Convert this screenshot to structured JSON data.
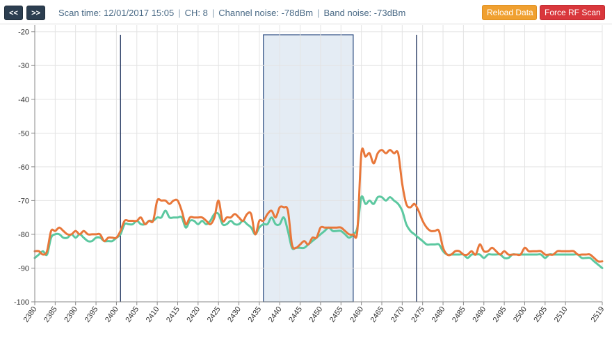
{
  "toolbar": {
    "prev_label": "<<",
    "next_label": ">>",
    "scan_time": "Scan time: 12/01/2017 15:05",
    "channel": "CH: 8",
    "channel_noise": "Channel noise: -78dBm",
    "band_noise": "Band noise: -73dBm",
    "separator": "|",
    "reload_label": "Reload Data",
    "force_label": "Force RF Scan",
    "colors": {
      "nav": "#2c3e50",
      "reload": "#f0a030",
      "force": "#d9373c"
    }
  },
  "chart_data": {
    "type": "line",
    "xlim": [
      2380,
      2519
    ],
    "ylim": [
      -100,
      -18
    ],
    "x_ticks": [
      2380,
      2385,
      2390,
      2395,
      2400,
      2405,
      2410,
      2415,
      2420,
      2425,
      2430,
      2435,
      2440,
      2445,
      2450,
      2455,
      2460,
      2465,
      2470,
      2475,
      2480,
      2485,
      2490,
      2495,
      2500,
      2505,
      2510,
      2519
    ],
    "y_ticks": [
      -20,
      -30,
      -40,
      -50,
      -60,
      -70,
      -80,
      -90,
      -100
    ],
    "grid": true,
    "channel_band": {
      "x0": 2436,
      "x1": 2458,
      "fill": "#e4ecf4",
      "stroke": "#2a4a7f"
    },
    "markers": [
      {
        "x": 2401,
        "color": "#2c3e66"
      },
      {
        "x": 2473.5,
        "color": "#2c3e66"
      }
    ],
    "series": [
      {
        "color": "#e8773a",
        "points": [
          [
            2380,
            -85
          ],
          [
            2381,
            -85
          ],
          [
            2382,
            -86
          ],
          [
            2383,
            -85
          ],
          [
            2384,
            -79
          ],
          [
            2385,
            -79
          ],
          [
            2386,
            -78
          ],
          [
            2387,
            -79
          ],
          [
            2388,
            -80
          ],
          [
            2389,
            -80
          ],
          [
            2390,
            -79
          ],
          [
            2391,
            -80
          ],
          [
            2392,
            -79
          ],
          [
            2393,
            -80
          ],
          [
            2394,
            -80
          ],
          [
            2395,
            -80
          ],
          [
            2396,
            -80
          ],
          [
            2397,
            -82
          ],
          [
            2398,
            -81
          ],
          [
            2399,
            -81
          ],
          [
            2400,
            -81
          ],
          [
            2401,
            -79
          ],
          [
            2402,
            -76
          ],
          [
            2403,
            -76
          ],
          [
            2404,
            -76
          ],
          [
            2405,
            -76
          ],
          [
            2406,
            -75
          ],
          [
            2407,
            -77
          ],
          [
            2408,
            -76
          ],
          [
            2409,
            -76
          ],
          [
            2410,
            -70
          ],
          [
            2411,
            -70
          ],
          [
            2412,
            -70
          ],
          [
            2413,
            -71
          ],
          [
            2414,
            -70
          ],
          [
            2415,
            -70
          ],
          [
            2416,
            -73
          ],
          [
            2417,
            -77
          ],
          [
            2418,
            -75
          ],
          [
            2419,
            -75
          ],
          [
            2420,
            -75
          ],
          [
            2421,
            -75
          ],
          [
            2422,
            -76
          ],
          [
            2423,
            -77
          ],
          [
            2424,
            -75
          ],
          [
            2425,
            -70
          ],
          [
            2426,
            -76
          ],
          [
            2427,
            -75
          ],
          [
            2428,
            -75
          ],
          [
            2429,
            -74
          ],
          [
            2430,
            -75
          ],
          [
            2431,
            -76
          ],
          [
            2432,
            -74
          ],
          [
            2433,
            -74
          ],
          [
            2434,
            -80
          ],
          [
            2435,
            -76
          ],
          [
            2436,
            -76
          ],
          [
            2437,
            -74
          ],
          [
            2438,
            -73
          ],
          [
            2439,
            -75
          ],
          [
            2440,
            -72
          ],
          [
            2441,
            -72
          ],
          [
            2442,
            -73
          ],
          [
            2443,
            -83
          ],
          [
            2444,
            -84
          ],
          [
            2445,
            -83
          ],
          [
            2446,
            -82
          ],
          [
            2447,
            -83
          ],
          [
            2448,
            -81
          ],
          [
            2449,
            -81
          ],
          [
            2450,
            -78
          ],
          [
            2451,
            -78
          ],
          [
            2452,
            -78
          ],
          [
            2453,
            -78
          ],
          [
            2454,
            -78
          ],
          [
            2455,
            -78
          ],
          [
            2456,
            -79
          ],
          [
            2457,
            -80
          ],
          [
            2458,
            -80
          ],
          [
            2459,
            -79
          ],
          [
            2460,
            -56
          ],
          [
            2461,
            -57
          ],
          [
            2462,
            -56
          ],
          [
            2463,
            -59
          ],
          [
            2464,
            -56
          ],
          [
            2465,
            -55
          ],
          [
            2466,
            -56
          ],
          [
            2467,
            -55
          ],
          [
            2468,
            -56
          ],
          [
            2469,
            -56
          ],
          [
            2470,
            -65
          ],
          [
            2471,
            -71
          ],
          [
            2472,
            -72
          ],
          [
            2473,
            -71
          ],
          [
            2474,
            -73
          ],
          [
            2475,
            -76
          ],
          [
            2476,
            -78
          ],
          [
            2477,
            -79
          ],
          [
            2478,
            -79
          ],
          [
            2479,
            -79
          ],
          [
            2480,
            -84
          ],
          [
            2481,
            -86
          ],
          [
            2482,
            -86
          ],
          [
            2483,
            -85
          ],
          [
            2484,
            -85
          ],
          [
            2485,
            -86
          ],
          [
            2486,
            -86
          ],
          [
            2487,
            -85
          ],
          [
            2488,
            -86
          ],
          [
            2489,
            -83
          ],
          [
            2490,
            -85
          ],
          [
            2491,
            -85
          ],
          [
            2492,
            -84
          ],
          [
            2493,
            -85
          ],
          [
            2494,
            -86
          ],
          [
            2495,
            -85
          ],
          [
            2496,
            -86
          ],
          [
            2497,
            -86
          ],
          [
            2498,
            -86
          ],
          [
            2499,
            -86
          ],
          [
            2500,
            -84
          ],
          [
            2501,
            -85
          ],
          [
            2502,
            -85
          ],
          [
            2503,
            -85
          ],
          [
            2504,
            -85
          ],
          [
            2505,
            -86
          ],
          [
            2506,
            -86
          ],
          [
            2507,
            -86
          ],
          [
            2508,
            -85
          ],
          [
            2509,
            -85
          ],
          [
            2510,
            -85
          ],
          [
            2511,
            -85
          ],
          [
            2512,
            -85
          ],
          [
            2513,
            -86
          ],
          [
            2514,
            -86
          ],
          [
            2515,
            -86
          ],
          [
            2516,
            -86
          ],
          [
            2517,
            -87
          ],
          [
            2518,
            -88
          ],
          [
            2519,
            -88
          ]
        ]
      },
      {
        "color": "#5cc8a0",
        "points": [
          [
            2380,
            -87
          ],
          [
            2381,
            -86
          ],
          [
            2382,
            -85
          ],
          [
            2383,
            -86
          ],
          [
            2384,
            -81
          ],
          [
            2385,
            -80
          ],
          [
            2386,
            -80
          ],
          [
            2387,
            -81
          ],
          [
            2388,
            -81
          ],
          [
            2389,
            -80
          ],
          [
            2390,
            -81
          ],
          [
            2391,
            -80
          ],
          [
            2392,
            -81
          ],
          [
            2393,
            -82
          ],
          [
            2394,
            -82
          ],
          [
            2395,
            -81
          ],
          [
            2396,
            -81
          ],
          [
            2397,
            -82
          ],
          [
            2398,
            -82
          ],
          [
            2399,
            -82
          ],
          [
            2400,
            -81
          ],
          [
            2401,
            -80
          ],
          [
            2402,
            -77
          ],
          [
            2403,
            -77
          ],
          [
            2404,
            -77
          ],
          [
            2405,
            -76
          ],
          [
            2406,
            -77
          ],
          [
            2407,
            -77
          ],
          [
            2408,
            -76
          ],
          [
            2409,
            -76
          ],
          [
            2410,
            -75
          ],
          [
            2411,
            -75
          ],
          [
            2412,
            -73
          ],
          [
            2413,
            -75
          ],
          [
            2414,
            -75
          ],
          [
            2415,
            -75
          ],
          [
            2416,
            -75
          ],
          [
            2417,
            -78
          ],
          [
            2418,
            -76
          ],
          [
            2419,
            -76
          ],
          [
            2420,
            -77
          ],
          [
            2421,
            -76
          ],
          [
            2422,
            -77
          ],
          [
            2423,
            -76
          ],
          [
            2424,
            -74
          ],
          [
            2425,
            -74
          ],
          [
            2426,
            -77
          ],
          [
            2427,
            -77
          ],
          [
            2428,
            -76
          ],
          [
            2429,
            -77
          ],
          [
            2430,
            -77
          ],
          [
            2431,
            -76
          ],
          [
            2432,
            -77
          ],
          [
            2433,
            -78
          ],
          [
            2434,
            -80
          ],
          [
            2435,
            -78
          ],
          [
            2436,
            -77
          ],
          [
            2437,
            -77
          ],
          [
            2438,
            -75
          ],
          [
            2439,
            -77
          ],
          [
            2440,
            -77
          ],
          [
            2441,
            -75
          ],
          [
            2442,
            -79
          ],
          [
            2443,
            -84
          ],
          [
            2444,
            -84
          ],
          [
            2445,
            -84
          ],
          [
            2446,
            -84
          ],
          [
            2447,
            -83
          ],
          [
            2448,
            -82
          ],
          [
            2449,
            -81
          ],
          [
            2450,
            -80
          ],
          [
            2451,
            -79
          ],
          [
            2452,
            -78
          ],
          [
            2453,
            -79
          ],
          [
            2454,
            -79
          ],
          [
            2455,
            -79
          ],
          [
            2456,
            -80
          ],
          [
            2457,
            -81
          ],
          [
            2458,
            -80
          ],
          [
            2459,
            -78
          ],
          [
            2460,
            -69
          ],
          [
            2461,
            -71
          ],
          [
            2462,
            -70
          ],
          [
            2463,
            -71
          ],
          [
            2464,
            -69
          ],
          [
            2465,
            -69
          ],
          [
            2466,
            -70
          ],
          [
            2467,
            -69
          ],
          [
            2468,
            -70
          ],
          [
            2469,
            -71
          ],
          [
            2470,
            -73
          ],
          [
            2471,
            -77
          ],
          [
            2472,
            -79
          ],
          [
            2473,
            -80
          ],
          [
            2474,
            -81
          ],
          [
            2475,
            -82
          ],
          [
            2476,
            -83
          ],
          [
            2477,
            -83
          ],
          [
            2478,
            -83
          ],
          [
            2479,
            -83
          ],
          [
            2480,
            -85
          ],
          [
            2481,
            -86
          ],
          [
            2482,
            -86
          ],
          [
            2483,
            -86
          ],
          [
            2484,
            -86
          ],
          [
            2485,
            -86
          ],
          [
            2486,
            -87
          ],
          [
            2487,
            -86
          ],
          [
            2488,
            -86
          ],
          [
            2489,
            -86
          ],
          [
            2490,
            -87
          ],
          [
            2491,
            -86
          ],
          [
            2492,
            -86
          ],
          [
            2493,
            -86
          ],
          [
            2494,
            -86
          ],
          [
            2495,
            -87
          ],
          [
            2496,
            -87
          ],
          [
            2497,
            -86
          ],
          [
            2498,
            -86
          ],
          [
            2499,
            -86
          ],
          [
            2500,
            -86
          ],
          [
            2501,
            -86
          ],
          [
            2502,
            -86
          ],
          [
            2503,
            -86
          ],
          [
            2504,
            -86
          ],
          [
            2505,
            -87
          ],
          [
            2506,
            -86
          ],
          [
            2507,
            -86
          ],
          [
            2508,
            -86
          ],
          [
            2509,
            -86
          ],
          [
            2510,
            -86
          ],
          [
            2511,
            -86
          ],
          [
            2512,
            -86
          ],
          [
            2513,
            -86
          ],
          [
            2514,
            -87
          ],
          [
            2515,
            -87
          ],
          [
            2516,
            -87
          ],
          [
            2517,
            -88
          ],
          [
            2518,
            -89
          ],
          [
            2519,
            -90
          ]
        ]
      }
    ]
  }
}
